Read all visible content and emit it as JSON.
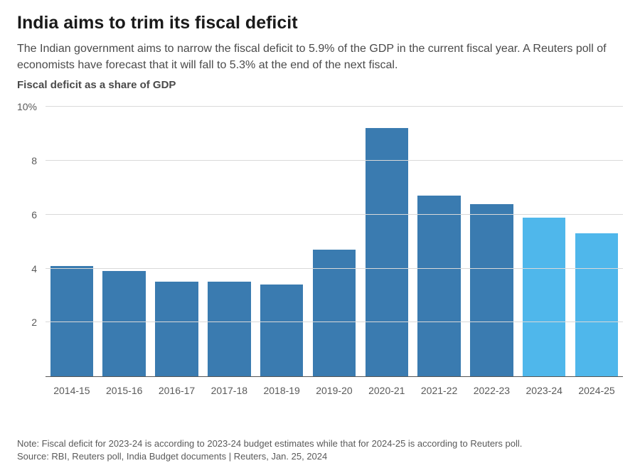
{
  "title": "India aims to trim its fiscal deficit",
  "subtitle": "The Indian government aims to narrow the fiscal deficit to 5.9% of the GDP in the current fiscal year. A Reuters poll of economists have forecast that it will fall to 5.3% at the end of the next fiscal.",
  "axis_title": "Fiscal deficit as a share of GDP",
  "chart": {
    "type": "bar",
    "ylim": [
      0,
      10
    ],
    "yticks": [
      {
        "value": 2,
        "label": "2"
      },
      {
        "value": 4,
        "label": "4"
      },
      {
        "value": 6,
        "label": "6"
      },
      {
        "value": 8,
        "label": "8"
      },
      {
        "value": 10,
        "label": "10%"
      }
    ],
    "grid_color": "#d9d9d9",
    "baseline_color": "#555555",
    "background_color": "#ffffff",
    "colors": {
      "actual": "#3a7bb0",
      "forecast": "#4fb7eb"
    },
    "bar_width": 0.82,
    "series": [
      {
        "label": "2014-15",
        "value": 4.1,
        "kind": "actual"
      },
      {
        "label": "2015-16",
        "value": 3.9,
        "kind": "actual"
      },
      {
        "label": "2016-17",
        "value": 3.5,
        "kind": "actual"
      },
      {
        "label": "2017-18",
        "value": 3.5,
        "kind": "actual"
      },
      {
        "label": "2018-19",
        "value": 3.4,
        "kind": "actual"
      },
      {
        "label": "2019-20",
        "value": 4.7,
        "kind": "actual"
      },
      {
        "label": "2020-21",
        "value": 9.2,
        "kind": "actual"
      },
      {
        "label": "2021-22",
        "value": 6.7,
        "kind": "actual"
      },
      {
        "label": "2022-23",
        "value": 6.4,
        "kind": "actual"
      },
      {
        "label": "2023-24",
        "value": 5.9,
        "kind": "forecast"
      },
      {
        "label": "2024-25",
        "value": 5.3,
        "kind": "forecast"
      }
    ]
  },
  "note": "Note: Fiscal deficit for 2023-24 is according to 2023-24 budget estimates while that for 2024-25 is according to Reuters poll.",
  "source": "Source: RBI, Reuters poll, India Budget documents | Reuters, Jan. 25, 2024"
}
